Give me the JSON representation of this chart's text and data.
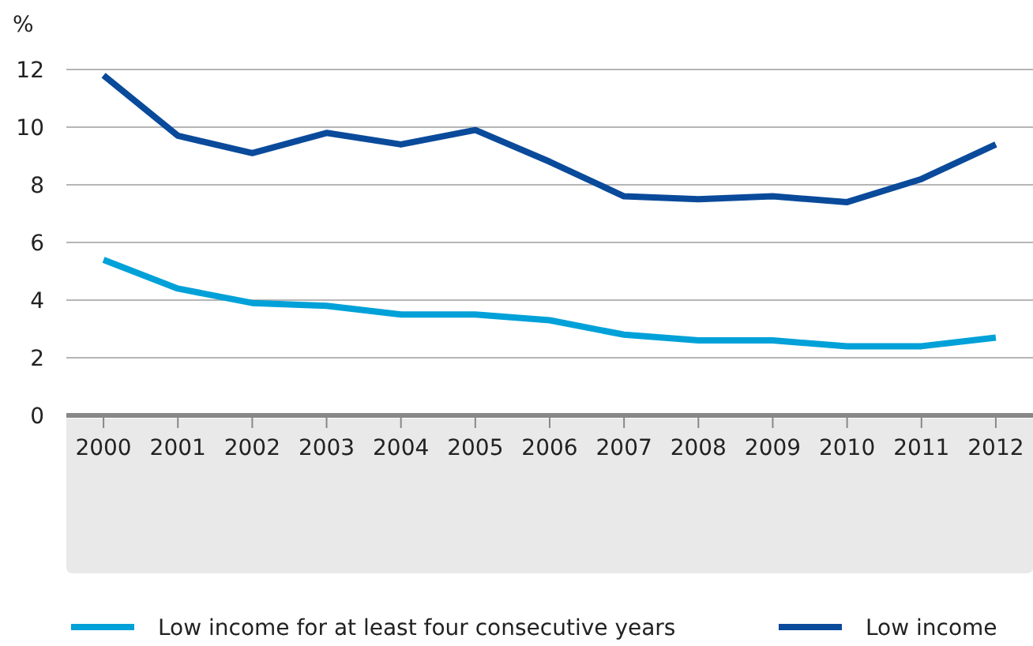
{
  "chart_data": {
    "type": "line",
    "ylabel": "%",
    "categories": [
      "2000",
      "2001",
      "2002",
      "2003",
      "2004",
      "2005",
      "2006",
      "2007",
      "2008",
      "2009",
      "2010",
      "2011",
      "2012"
    ],
    "series": [
      {
        "name": "Low income for at least four consecutive years",
        "color": "#00a1d8",
        "values": [
          5.4,
          4.4,
          3.9,
          3.8,
          3.5,
          3.5,
          3.3,
          2.8,
          2.6,
          2.6,
          2.4,
          2.4,
          2.7
        ]
      },
      {
        "name": "Low income",
        "color": "#0a4a9b",
        "values": [
          11.8,
          9.7,
          9.1,
          9.8,
          9.4,
          9.9,
          8.8,
          7.6,
          7.5,
          7.6,
          7.4,
          8.2,
          9.4
        ]
      }
    ],
    "ylim": [
      0,
      12
    ],
    "yticks": [
      0,
      2,
      4,
      6,
      8,
      10,
      12
    ],
    "grid": "y",
    "legend": "bottom",
    "marker": "none",
    "line_style": "solid"
  }
}
